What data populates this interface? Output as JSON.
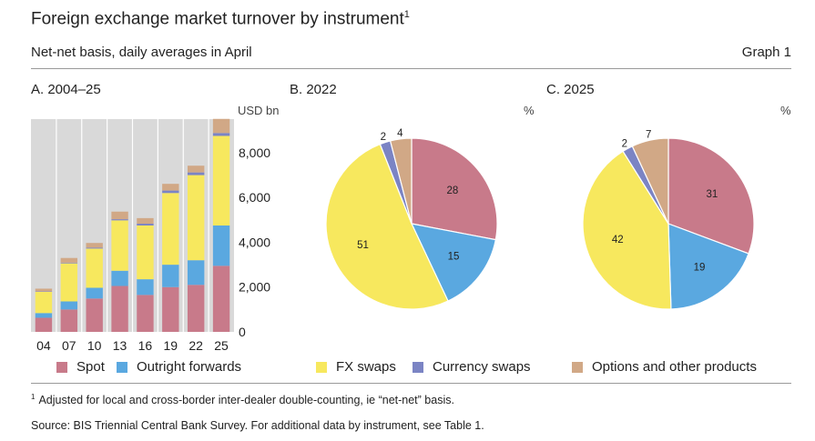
{
  "header": {
    "title": "Foreign exchange market turnover by instrument",
    "title_note": "1",
    "subtitle": "Net-net basis, daily averages in April",
    "graph_label": "Graph 1"
  },
  "panels": {
    "a_title": "A. 2004–25",
    "a_unit": "USD bn",
    "b_title": "B. 2022",
    "b_unit": "%",
    "c_title": "C. 2025",
    "c_unit": "%"
  },
  "colors": {
    "spot": "#c87a8a",
    "outright": "#5aa8e0",
    "fx_swaps": "#f7e85e",
    "currency_swaps": "#7b84c4",
    "options": "#d1a886",
    "plot_bg": "#d9d9d9"
  },
  "legend": [
    {
      "label": "Spot",
      "color": "#c87a8a"
    },
    {
      "label": "Outright forwards",
      "color": "#5aa8e0"
    },
    {
      "label": "FX swaps",
      "color": "#f7e85e"
    },
    {
      "label": "Currency swaps",
      "color": "#7b84c4"
    },
    {
      "label": "Options and other products",
      "color": "#d1a886"
    }
  ],
  "footer": {
    "footnote_mark": "1",
    "footnote": "Adjusted for local and cross-border inter-dealer double-counting, ie “net-net” basis.",
    "source": "Source: BIS Triennial Central Bank Survey. For additional data by instrument, see Table 1."
  },
  "chart_data": [
    {
      "type": "bar",
      "stacked": true,
      "title": "A. 2004–25",
      "ylabel": "USD bn",
      "categories": [
        "04",
        "07",
        "10",
        "13",
        "16",
        "19",
        "22",
        "25"
      ],
      "ylim": [
        0,
        9500
      ],
      "yticks": [
        0,
        2000,
        4000,
        6000,
        8000
      ],
      "ytick_labels": [
        "0",
        "2,000",
        "4,000",
        "6,000",
        "8,000"
      ],
      "grid": false,
      "series": [
        {
          "name": "Spot",
          "values": [
            630,
            1000,
            1490,
            2050,
            1650,
            2000,
            2100,
            2950
          ]
        },
        {
          "name": "Outright forwards",
          "values": [
            210,
            360,
            480,
            680,
            700,
            1000,
            1100,
            1800
          ]
        },
        {
          "name": "FX swaps",
          "values": [
            950,
            1700,
            1750,
            2250,
            2400,
            3200,
            3800,
            4000
          ]
        },
        {
          "name": "Currency swaps",
          "values": [
            20,
            30,
            40,
            50,
            80,
            110,
            120,
            130
          ]
        },
        {
          "name": "Options and other products",
          "values": [
            120,
            210,
            210,
            340,
            250,
            300,
            300,
            630
          ]
        }
      ]
    },
    {
      "type": "pie",
      "title": "B. 2022",
      "unit": "%",
      "slices": [
        {
          "name": "Spot",
          "value": 28
        },
        {
          "name": "Outright forwards",
          "value": 15
        },
        {
          "name": "FX swaps",
          "value": 51
        },
        {
          "name": "Currency swaps",
          "value": 2
        },
        {
          "name": "Options and other products",
          "value": 4
        }
      ]
    },
    {
      "type": "pie",
      "title": "C. 2025",
      "unit": "%",
      "slices": [
        {
          "name": "Spot",
          "value": 31
        },
        {
          "name": "Outright forwards",
          "value": 19
        },
        {
          "name": "FX swaps",
          "value": 42
        },
        {
          "name": "Currency swaps",
          "value": 2
        },
        {
          "name": "Options and other products",
          "value": 7
        }
      ]
    }
  ]
}
